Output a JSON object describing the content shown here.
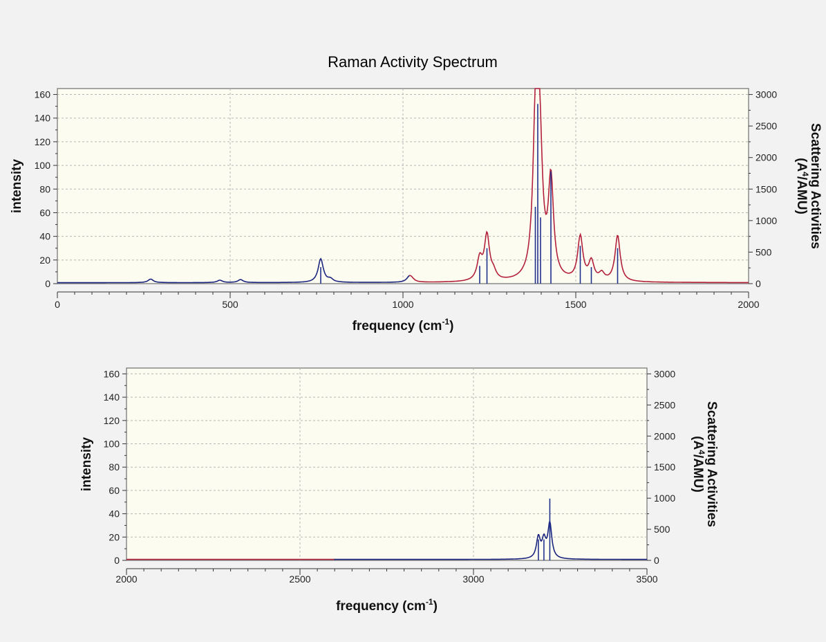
{
  "page": {
    "title": "Raman Activity Spectrum"
  },
  "colors": {
    "background": "#f2f2f2",
    "plot_background": "#fcfdf0",
    "spectrum_low": "#1a237e",
    "spectrum_high": "#b21f3a",
    "sticks": "#1f2f8f",
    "grid": "#b5b5b5"
  },
  "chart_data": [
    {
      "type": "line",
      "title": "Raman Activity Spectrum",
      "xlabel": "frequency (cm-1)",
      "ylabel": "intensity",
      "y2label_line1": "Scattering Activities",
      "y2label_line2": "(A4/AMU)",
      "xlim": [
        0,
        2000
      ],
      "ylim": [
        0,
        165
      ],
      "y2lim": [
        0,
        3094
      ],
      "grid": true,
      "xticks": [
        0,
        500,
        1000,
        1500,
        2000
      ],
      "yticks": [
        0,
        20,
        40,
        60,
        80,
        100,
        120,
        140,
        160
      ],
      "y2ticks": [
        0,
        500,
        1000,
        1500,
        2000,
        2500,
        3000
      ],
      "series": [
        {
          "role": "spectrum",
          "peaks": [
            {
              "x": 270,
              "h": 3
            },
            {
              "x": 470,
              "h": 2
            },
            {
              "x": 530,
              "h": 2.5
            },
            {
              "x": 762,
              "h": 20
            },
            {
              "x": 790,
              "h": 2.5
            },
            {
              "x": 1018,
              "h": 4
            },
            {
              "x": 1025,
              "h": 2.5
            },
            {
              "x": 1222,
              "h": 18
            },
            {
              "x": 1243,
              "h": 38
            },
            {
              "x": 1262,
              "h": 6
            },
            {
              "x": 1383,
              "h": 80
            },
            {
              "x": 1390,
              "h": 130
            },
            {
              "x": 1398,
              "h": 45
            },
            {
              "x": 1428,
              "h": 82
            },
            {
              "x": 1513,
              "h": 37
            },
            {
              "x": 1545,
              "h": 16
            },
            {
              "x": 1575,
              "h": 6
            },
            {
              "x": 1621,
              "h": 39
            }
          ]
        },
        {
          "role": "sticks",
          "points": [
            {
              "x": 762,
              "y": 14
            },
            {
              "x": 1222,
              "y": 15
            },
            {
              "x": 1243,
              "y": 30
            },
            {
              "x": 1383,
              "y": 65
            },
            {
              "x": 1390,
              "y": 152
            },
            {
              "x": 1398,
              "y": 56
            },
            {
              "x": 1428,
              "y": 95
            },
            {
              "x": 1513,
              "y": 32
            },
            {
              "x": 1545,
              "y": 14
            },
            {
              "x": 1621,
              "y": 30
            }
          ]
        }
      ]
    },
    {
      "type": "line",
      "title": "",
      "xlabel": "frequency (cm-1)",
      "ylabel": "intensity",
      "y2label_line1": "Scattering Activities",
      "y2label_line2": "(A4/AMU)",
      "xlim": [
        2000,
        3500
      ],
      "ylim": [
        0,
        165
      ],
      "y2lim": [
        0,
        3094
      ],
      "grid": true,
      "xticks": [
        2000,
        2500,
        3000,
        3500
      ],
      "yticks": [
        0,
        20,
        40,
        60,
        80,
        100,
        120,
        140,
        160
      ],
      "y2ticks": [
        0,
        500,
        1000,
        1500,
        2000,
        2500,
        3000
      ],
      "series": [
        {
          "role": "spectrum",
          "peaks": [
            {
              "x": 3187,
              "h": 18
            },
            {
              "x": 3203,
              "h": 15
            },
            {
              "x": 3220,
              "h": 30
            }
          ]
        },
        {
          "role": "sticks",
          "points": [
            {
              "x": 3187,
              "y": 18
            },
            {
              "x": 3203,
              "y": 18
            },
            {
              "x": 3220,
              "y": 53
            }
          ]
        }
      ]
    }
  ]
}
